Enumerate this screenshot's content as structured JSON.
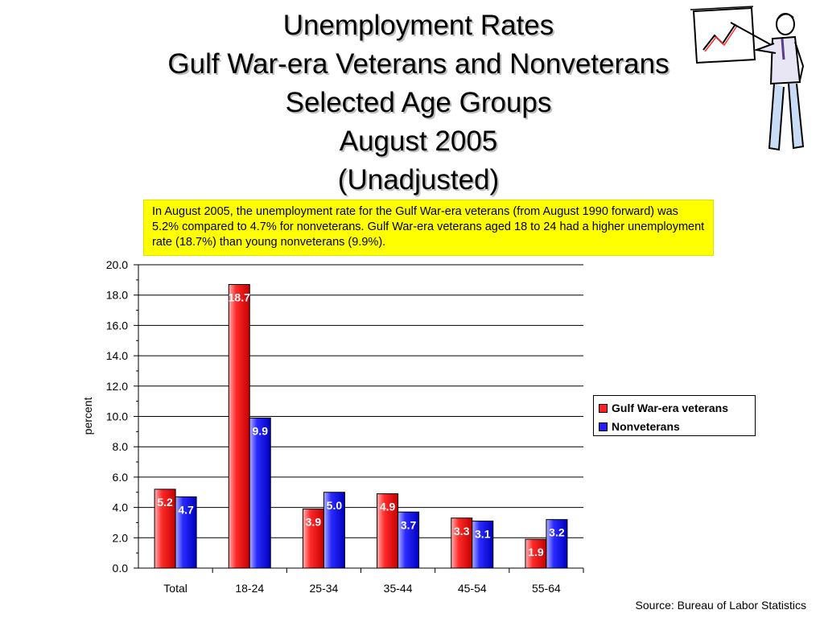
{
  "slide": {
    "title_lines": [
      "Unemployment Rates",
      "Gulf War-era Veterans and Nonveterans",
      "Selected Age Groups",
      "August 2005",
      "(Unadjusted)"
    ],
    "summary": "In August 2005, the unemployment rate for the Gulf War-era veterans (from August 1990 forward) was 5.2% compared to 4.7% for nonveterans. Gulf War-era veterans aged 18 to 24 had a higher unemployment rate (18.7%) than young nonveterans (9.9%).",
    "source": "Source: Bureau of Labor Statistics",
    "clipart_icon": "presenter-with-chart-icon"
  },
  "chart_data": {
    "type": "bar",
    "title": "",
    "xlabel": "",
    "ylabel": "percent",
    "ylim": [
      0,
      20
    ],
    "y_ticks": [
      "0.0",
      "2.0",
      "4.0",
      "6.0",
      "8.0",
      "10.0",
      "12.0",
      "14.0",
      "16.0",
      "18.0",
      "20.0"
    ],
    "grid": true,
    "legend_position": "right",
    "categories": [
      "Total",
      "18-24",
      "25-34",
      "35-44",
      "45-54",
      "55-64"
    ],
    "series": [
      {
        "name": "Gulf War-era veterans",
        "color": "#ff2020",
        "values": [
          5.2,
          18.7,
          3.9,
          4.9,
          3.3,
          1.9
        ],
        "labels": [
          "5.2",
          "18.7",
          "3.9",
          "4.9",
          "3.3",
          "1.9"
        ]
      },
      {
        "name": "Nonveterans",
        "color": "#2020ff",
        "values": [
          4.7,
          9.9,
          5.0,
          3.7,
          3.1,
          3.2
        ],
        "labels": [
          "4.7",
          "9.9",
          "5.0",
          "3.7",
          "3.1",
          "3.2"
        ]
      }
    ]
  }
}
